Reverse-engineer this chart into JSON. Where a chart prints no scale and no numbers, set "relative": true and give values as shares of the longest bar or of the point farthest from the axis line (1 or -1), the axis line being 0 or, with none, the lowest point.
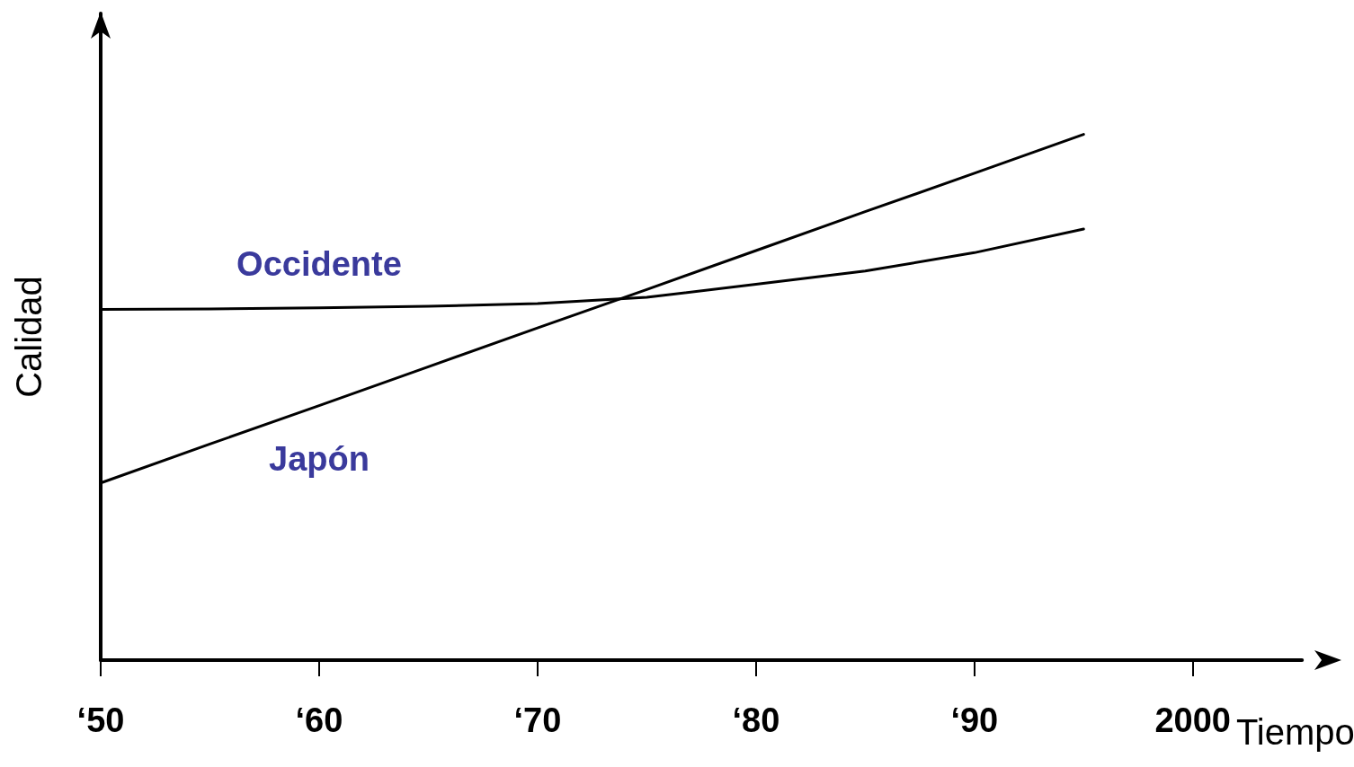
{
  "chart_data": {
    "type": "line",
    "relative": true,
    "xlabel": "Tiempo",
    "ylabel": "Calidad",
    "categories": [
      "‘50",
      null,
      "‘60",
      null,
      "‘70",
      null,
      "‘80",
      null,
      "‘90",
      null,
      "2000",
      null
    ],
    "tick_labels": "x",
    "grid": false,
    "legend": false,
    "marker": "none",
    "line_style": "solid",
    "series": [
      {
        "name": "Occidente",
        "color": "#000000",
        "values": [
          0.667,
          0.668,
          0.67,
          0.673,
          0.678,
          0.69,
          0.715,
          0.74,
          0.775,
          0.82,
          null,
          null
        ]
      },
      {
        "name": "Japón",
        "color": "#000000",
        "values": [
          0.337,
          0.411,
          0.484,
          0.558,
          0.632,
          0.705,
          0.779,
          0.853,
          0.926,
          1,
          null,
          null
        ]
      }
    ]
  }
}
